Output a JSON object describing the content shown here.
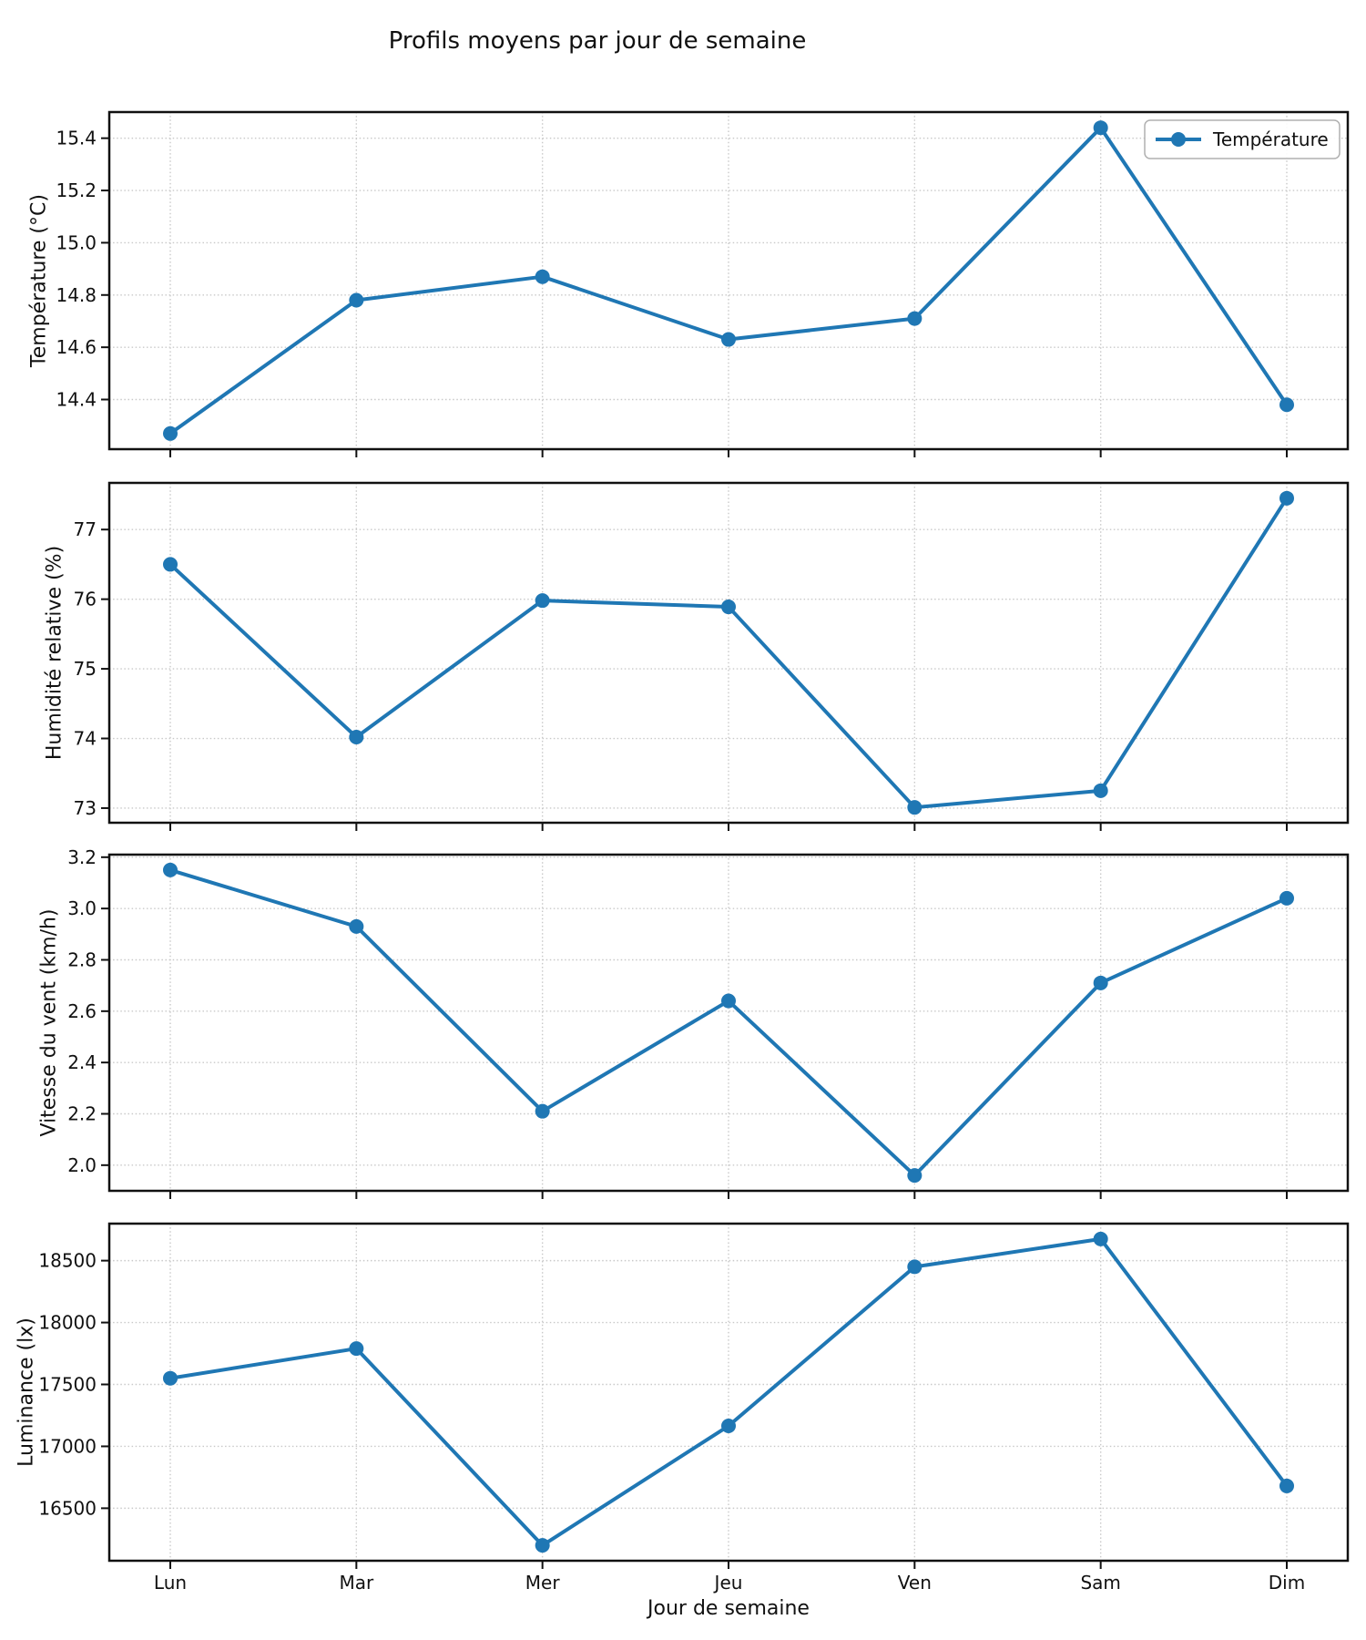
{
  "figure": {
    "title": "Profils moyens par jour de semaine",
    "xlabel": "Jour de semaine"
  },
  "chart_data": {
    "type": "line",
    "title": "Profils moyens par jour de semaine",
    "xlabel": "Jour de semaine",
    "categories": [
      "Lun",
      "Mar",
      "Mer",
      "Jeu",
      "Ven",
      "Sam",
      "Dim"
    ],
    "line_color": "#1f77b4",
    "grid": "dotted-both-axes",
    "legend_position": "upper-right-first-subplot",
    "subplots": [
      {
        "id": "temperature",
        "ylabel": "Température (°C)",
        "series_name": "Température",
        "values": [
          14.27,
          14.78,
          14.87,
          14.63,
          14.71,
          15.44,
          14.38
        ],
        "ylim": [
          14.21,
          15.5
        ],
        "yticks": [
          14.4,
          14.6,
          14.8,
          15.0,
          15.2,
          15.4
        ],
        "ytick_labels": [
          "14.4",
          "14.6",
          "14.8",
          "15.0",
          "15.2",
          "15.4"
        ],
        "legend_label": "Température"
      },
      {
        "id": "humidity",
        "ylabel": "Humidité relative (%)",
        "series_name": "Humidité relative",
        "values": [
          76.5,
          74.02,
          75.98,
          75.89,
          73.01,
          73.25,
          77.45
        ],
        "ylim": [
          72.79,
          77.67
        ],
        "yticks": [
          73,
          74,
          75,
          76,
          77
        ],
        "ytick_labels": [
          "73",
          "74",
          "75",
          "76",
          "77"
        ]
      },
      {
        "id": "wind-speed",
        "ylabel": "Vitesse du vent (km/h)",
        "series_name": "Vitesse du vent",
        "values": [
          3.15,
          2.93,
          2.21,
          2.64,
          1.96,
          2.71,
          3.04
        ],
        "ylim": [
          1.9,
          3.21
        ],
        "yticks": [
          2.0,
          2.2,
          2.4,
          2.6,
          2.8,
          3.0,
          3.2
        ],
        "ytick_labels": [
          "2.0",
          "2.2",
          "2.4",
          "2.6",
          "2.8",
          "3.0",
          "3.2"
        ]
      },
      {
        "id": "luminance",
        "ylabel": "Luminance (lx)",
        "series_name": "Luminance",
        "values": [
          17550,
          17790,
          16200,
          17165,
          18450,
          18675,
          16680
        ],
        "ylim": [
          16076,
          18799
        ],
        "yticks": [
          16500,
          17000,
          17500,
          18000,
          18500
        ],
        "ytick_labels": [
          "16500",
          "17000",
          "17500",
          "18000",
          "18500"
        ]
      }
    ]
  }
}
